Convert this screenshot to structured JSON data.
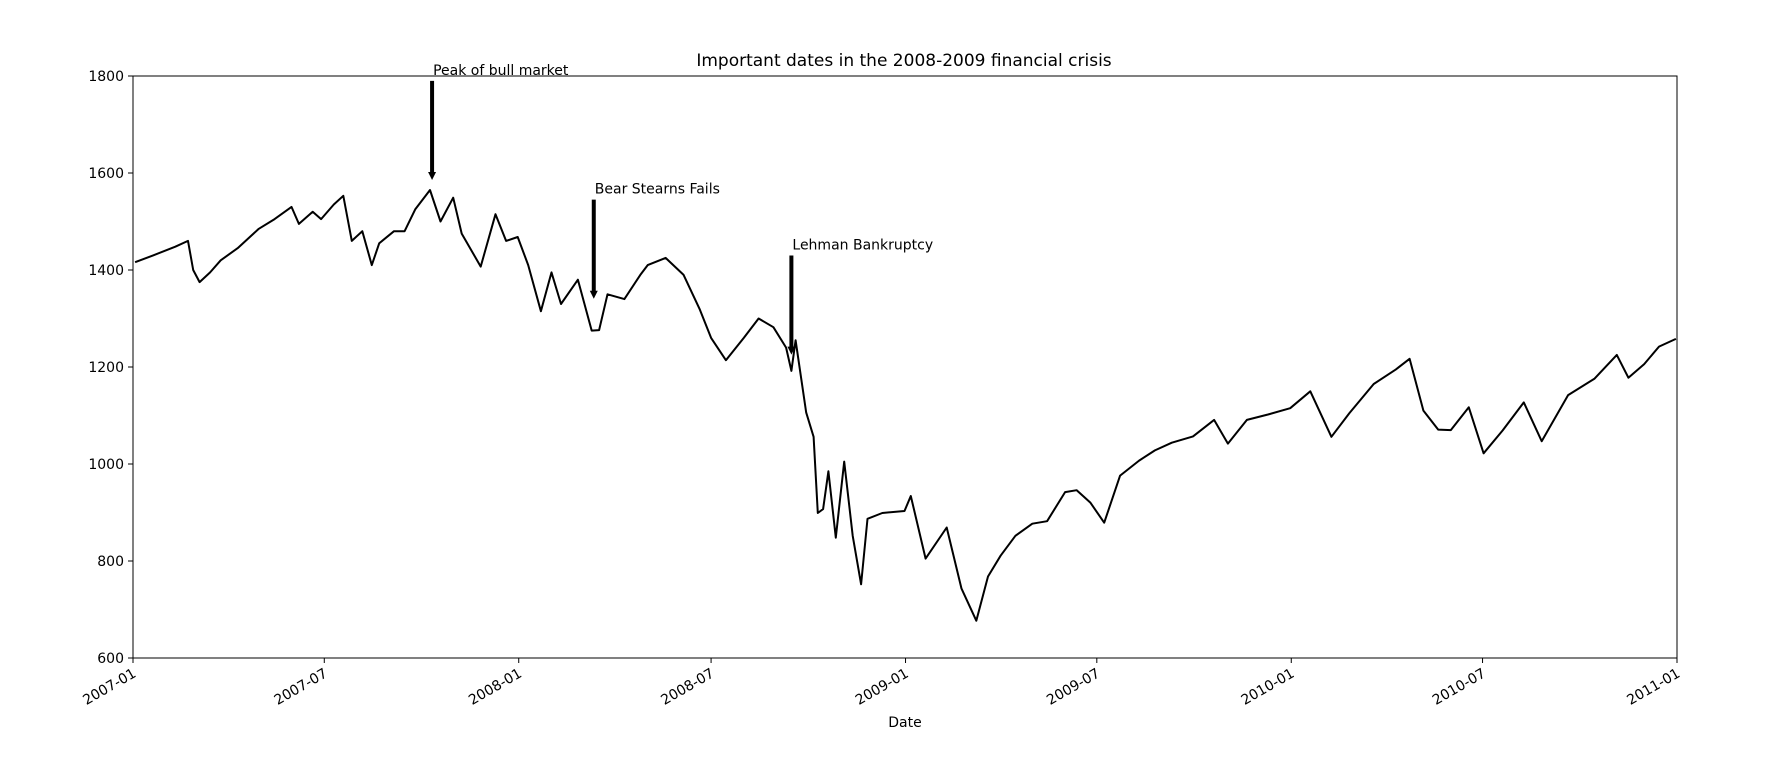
{
  "chart_data": {
    "type": "line",
    "title": "Important dates in the 2008-2009 financial crisis",
    "xlabel": "Date",
    "ylabel": "",
    "x_range": [
      "2007-01-01",
      "2011-01-01"
    ],
    "ylim": [
      600,
      1800
    ],
    "grid": false,
    "legend": "none",
    "x_ticks": [
      "2007-01",
      "2007-07",
      "2008-01",
      "2008-07",
      "2009-01",
      "2009-07",
      "2010-01",
      "2010-07",
      "2011-01"
    ],
    "y_ticks": [
      600,
      800,
      1000,
      1200,
      1400,
      1600,
      1800
    ],
    "series": [
      {
        "color": "#000000",
        "points": [
          [
            "2007-01-03",
            1416
          ],
          [
            "2007-01-20",
            1430
          ],
          [
            "2007-02-10",
            1448
          ],
          [
            "2007-02-22",
            1460
          ],
          [
            "2007-02-27",
            1400
          ],
          [
            "2007-03-05",
            1375
          ],
          [
            "2007-03-15",
            1395
          ],
          [
            "2007-03-25",
            1420
          ],
          [
            "2007-04-10",
            1445
          ],
          [
            "2007-04-30",
            1485
          ],
          [
            "2007-05-15",
            1505
          ],
          [
            "2007-05-31",
            1530
          ],
          [
            "2007-06-07",
            1495
          ],
          [
            "2007-06-20",
            1520
          ],
          [
            "2007-06-28",
            1505
          ],
          [
            "2007-07-10",
            1535
          ],
          [
            "2007-07-19",
            1553
          ],
          [
            "2007-07-27",
            1460
          ],
          [
            "2007-08-06",
            1480
          ],
          [
            "2007-08-15",
            1410
          ],
          [
            "2007-08-22",
            1455
          ],
          [
            "2007-09-05",
            1480
          ],
          [
            "2007-09-15",
            1480
          ],
          [
            "2007-09-25",
            1525
          ],
          [
            "2007-10-09",
            1565
          ],
          [
            "2007-10-19",
            1500
          ],
          [
            "2007-10-31",
            1549
          ],
          [
            "2007-11-08",
            1475
          ],
          [
            "2007-11-26",
            1407
          ],
          [
            "2007-12-10",
            1515
          ],
          [
            "2007-12-20",
            1460
          ],
          [
            "2007-12-31",
            1468
          ],
          [
            "2008-01-10",
            1410
          ],
          [
            "2008-01-22",
            1315
          ],
          [
            "2008-02-01",
            1395
          ],
          [
            "2008-02-10",
            1330
          ],
          [
            "2008-02-26",
            1380
          ],
          [
            "2008-03-10",
            1275
          ],
          [
            "2008-03-17",
            1276
          ],
          [
            "2008-03-25",
            1350
          ],
          [
            "2008-04-10",
            1340
          ],
          [
            "2008-04-25",
            1390
          ],
          [
            "2008-05-02",
            1410
          ],
          [
            "2008-05-19",
            1425
          ],
          [
            "2008-06-05",
            1390
          ],
          [
            "2008-06-20",
            1320
          ],
          [
            "2008-07-01",
            1260
          ],
          [
            "2008-07-15",
            1214
          ],
          [
            "2008-08-01",
            1260
          ],
          [
            "2008-08-15",
            1300
          ],
          [
            "2008-08-29",
            1282
          ],
          [
            "2008-09-10",
            1240
          ],
          [
            "2008-09-15",
            1192
          ],
          [
            "2008-09-19",
            1255
          ],
          [
            "2008-09-29",
            1106
          ],
          [
            "2008-10-06",
            1056
          ],
          [
            "2008-10-10",
            899
          ],
          [
            "2008-10-15",
            907
          ],
          [
            "2008-10-20",
            985
          ],
          [
            "2008-10-27",
            848
          ],
          [
            "2008-11-04",
            1005
          ],
          [
            "2008-11-12",
            852
          ],
          [
            "2008-11-20",
            752
          ],
          [
            "2008-11-26",
            887
          ],
          [
            "2008-12-10",
            899
          ],
          [
            "2008-12-31",
            903
          ],
          [
            "2009-01-06",
            934
          ],
          [
            "2009-01-20",
            805
          ],
          [
            "2009-02-09",
            869
          ],
          [
            "2009-02-23",
            743
          ],
          [
            "2009-03-09",
            677
          ],
          [
            "2009-03-20",
            768
          ],
          [
            "2009-04-01",
            811
          ],
          [
            "2009-04-15",
            852
          ],
          [
            "2009-05-01",
            877
          ],
          [
            "2009-05-15",
            882
          ],
          [
            "2009-06-01",
            942
          ],
          [
            "2009-06-12",
            946
          ],
          [
            "2009-06-25",
            920
          ],
          [
            "2009-07-08",
            879
          ],
          [
            "2009-07-23",
            976
          ],
          [
            "2009-08-10",
            1007
          ],
          [
            "2009-08-25",
            1028
          ],
          [
            "2009-09-10",
            1044
          ],
          [
            "2009-09-30",
            1057
          ],
          [
            "2009-10-20",
            1091
          ],
          [
            "2009-11-02",
            1042
          ],
          [
            "2009-11-20",
            1091
          ],
          [
            "2009-12-10",
            1102
          ],
          [
            "2009-12-31",
            1115
          ],
          [
            "2010-01-19",
            1150
          ],
          [
            "2010-02-08",
            1056
          ],
          [
            "2010-02-25",
            1105
          ],
          [
            "2010-03-20",
            1165
          ],
          [
            "2010-04-10",
            1195
          ],
          [
            "2010-04-23",
            1217
          ],
          [
            "2010-05-06",
            1110
          ],
          [
            "2010-05-20",
            1071
          ],
          [
            "2010-06-01",
            1070
          ],
          [
            "2010-06-18",
            1117
          ],
          [
            "2010-07-02",
            1022
          ],
          [
            "2010-07-20",
            1069
          ],
          [
            "2010-08-09",
            1127
          ],
          [
            "2010-08-26",
            1047
          ],
          [
            "2010-09-20",
            1142
          ],
          [
            "2010-10-15",
            1176
          ],
          [
            "2010-11-05",
            1225
          ],
          [
            "2010-11-16",
            1178
          ],
          [
            "2010-12-01",
            1206
          ],
          [
            "2010-12-15",
            1242
          ],
          [
            "2010-12-31",
            1258
          ]
        ]
      }
    ],
    "annotations": [
      {
        "date": "2007-10-11",
        "value": 1565,
        "label": "Peak of bull market"
      },
      {
        "date": "2008-03-12",
        "value": 1320,
        "label": "Bear Stearns Fails"
      },
      {
        "date": "2008-09-15",
        "value": 1205,
        "label": "Lehman Bankruptcy"
      }
    ]
  }
}
